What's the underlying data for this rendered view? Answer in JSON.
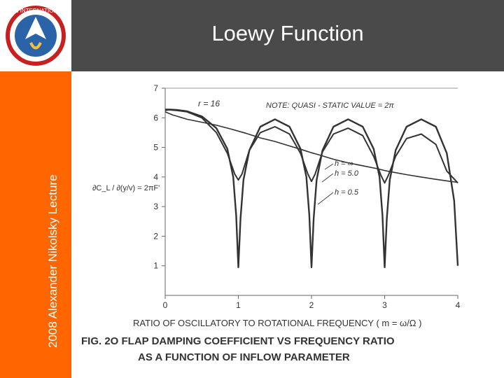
{
  "slide": {
    "title": "Loewy Function",
    "sidebar_text": "2008 Alexander Nikolsky Lecture",
    "logo_text": "AHS INTERNATIONAL",
    "colors": {
      "header": "#4a4a4a",
      "sidebar": "#ff6600",
      "logo_red": "#c8201e",
      "logo_blue": "#2a63a8"
    }
  },
  "chart_data": {
    "type": "line",
    "xlim": [
      0,
      4
    ],
    "ylim": [
      0,
      7
    ],
    "x_ticks": [
      "0",
      "1",
      "2",
      "3",
      "4"
    ],
    "y_ticks": [
      "1",
      "2",
      "3",
      "4",
      "5",
      "6",
      "7"
    ],
    "xlabel": "RATIO OF OSCILLATORY TO ROTATIONAL  FREQUENCY ( m = ω/Ω )",
    "ylabel": "∂C_L / ∂(y/v) = 2πF'",
    "annotations": [
      "r = 16",
      "NOTE: QUASI - STATIC VALUE = 2π"
    ],
    "caption_line1": "FIG. 2O  FLAP DAMPING COEFFICIENT  VS FREQUENCY  RATIO",
    "caption_line2": "AS  A  FUNCTION  OF  INFLOW  PARAMETER",
    "series": [
      {
        "name": "h = ∞",
        "x": [
          0,
          0.05,
          0.15,
          0.3,
          0.5,
          0.7,
          0.85,
          0.93,
          0.97,
          1.0,
          1.03,
          1.07,
          1.15,
          1.3,
          1.5,
          1.7,
          1.85,
          1.93,
          1.97,
          2.0,
          2.03,
          2.07,
          2.15,
          2.3,
          2.5,
          2.7,
          2.85,
          2.93,
          2.97,
          3.0,
          3.03,
          3.07,
          3.15,
          3.3,
          3.5,
          3.7,
          3.85,
          3.95,
          4.0
        ],
        "y": [
          6.28,
          6.28,
          6.27,
          6.22,
          6.05,
          5.65,
          4.95,
          4.0,
          2.7,
          0.95,
          2.6,
          3.9,
          4.9,
          5.7,
          5.95,
          5.7,
          4.95,
          4.0,
          2.7,
          0.95,
          2.6,
          3.9,
          4.9,
          5.7,
          5.95,
          5.7,
          4.95,
          4.0,
          2.7,
          0.95,
          2.6,
          3.9,
          4.9,
          5.7,
          5.95,
          5.7,
          4.8,
          3.2,
          1.0
        ]
      },
      {
        "name": "h = 5.0",
        "x": [
          0,
          0.05,
          0.15,
          0.3,
          0.5,
          0.7,
          0.85,
          0.95,
          1.0,
          1.05,
          1.15,
          1.3,
          1.5,
          1.7,
          1.85,
          1.95,
          2.0,
          2.05,
          2.15,
          2.3,
          2.5,
          2.7,
          2.85,
          2.95,
          3.0,
          3.05,
          3.15,
          3.3,
          3.5,
          3.7,
          3.85,
          4.0
        ],
        "y": [
          6.25,
          6.27,
          6.25,
          6.2,
          6.0,
          5.5,
          4.8,
          4.1,
          3.9,
          4.1,
          4.9,
          5.5,
          5.7,
          5.45,
          4.8,
          4.1,
          3.85,
          4.1,
          4.85,
          5.45,
          5.65,
          5.4,
          4.7,
          4.05,
          3.8,
          4.05,
          4.7,
          5.3,
          5.45,
          5.1,
          4.2,
          3.8
        ]
      },
      {
        "name": "h = 0.5",
        "x": [
          0,
          0.1,
          0.3,
          0.5,
          0.7,
          0.9,
          1.0,
          1.1,
          1.3,
          1.5,
          1.7,
          1.9,
          2.0,
          2.1,
          2.3,
          2.5,
          2.7,
          2.9,
          3.0,
          3.1,
          3.3,
          3.5,
          3.7,
          3.9,
          4.0
        ],
        "y": [
          6.2,
          6.1,
          5.95,
          5.85,
          5.75,
          5.62,
          5.55,
          5.48,
          5.32,
          5.2,
          5.05,
          4.9,
          4.82,
          4.75,
          4.6,
          4.48,
          4.38,
          4.28,
          4.22,
          4.17,
          4.08,
          4.0,
          3.92,
          3.85,
          3.82
        ]
      }
    ]
  }
}
